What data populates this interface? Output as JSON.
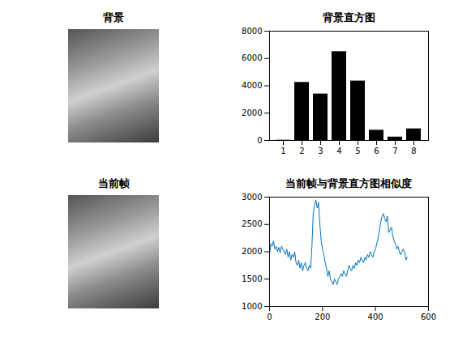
{
  "chart_data": [
    {
      "type": "image",
      "title": "背景"
    },
    {
      "type": "bar",
      "title": "背景直方图",
      "categories": [
        1,
        2,
        3,
        4,
        5,
        6,
        7,
        8
      ],
      "values": [
        20,
        4250,
        3400,
        6500,
        4350,
        750,
        250,
        850
      ],
      "color": "#000000",
      "ylim": [
        0,
        8000
      ],
      "yticks": [
        0,
        2000,
        4000,
        6000,
        8000
      ]
    },
    {
      "type": "image",
      "title": "当前帧"
    },
    {
      "type": "line",
      "title": "当前帧与背景直方图相似度",
      "x": [
        0,
        5,
        10,
        15,
        20,
        25,
        30,
        35,
        40,
        45,
        50,
        55,
        60,
        65,
        70,
        75,
        80,
        85,
        90,
        95,
        100,
        105,
        110,
        115,
        120,
        125,
        130,
        135,
        140,
        145,
        150,
        155,
        160,
        165,
        170,
        175,
        180,
        185,
        190,
        195,
        200,
        205,
        210,
        215,
        220,
        225,
        230,
        235,
        240,
        245,
        250,
        255,
        260,
        265,
        270,
        275,
        280,
        285,
        290,
        295,
        300,
        305,
        310,
        315,
        320,
        325,
        330,
        335,
        340,
        345,
        350,
        355,
        360,
        365,
        370,
        375,
        380,
        385,
        390,
        395,
        400,
        405,
        410,
        415,
        420,
        425,
        430,
        435,
        440,
        445,
        450,
        455,
        460,
        465,
        470,
        475,
        480,
        485,
        490,
        495,
        500,
        505,
        510,
        515,
        520
      ],
      "values": [
        1950,
        2150,
        2100,
        2200,
        2050,
        2100,
        2000,
        2080,
        1980,
        2100,
        2050,
        2000,
        1950,
        2050,
        1900,
        2000,
        1850,
        1950,
        1900,
        2000,
        1800,
        1750,
        1850,
        1700,
        1800,
        1650,
        1750,
        1800,
        1700,
        1650,
        1750,
        1700,
        2100,
        2700,
        2850,
        2950,
        2800,
        2900,
        2500,
        2200,
        2050,
        1950,
        1800,
        1700,
        1550,
        1650,
        1500,
        1450,
        1400,
        1500,
        1450,
        1400,
        1500,
        1550,
        1600,
        1550,
        1650,
        1600,
        1550,
        1650,
        1750,
        1700,
        1650,
        1750,
        1700,
        1800,
        1750,
        1850,
        1800,
        1900,
        1850,
        1800,
        1900,
        1850,
        1950,
        1900,
        2000,
        1950,
        1900,
        2000,
        2050,
        2150,
        2250,
        2400,
        2550,
        2650,
        2700,
        2600,
        2550,
        2650,
        2350,
        2400,
        2450,
        2300,
        2200,
        2150,
        2050,
        2100,
        2000,
        1950,
        2000,
        2050,
        2000,
        1850,
        1900
      ],
      "color": "#0072bd",
      "xlim": [
        0,
        600
      ],
      "xticks": [
        0,
        200,
        400,
        600
      ],
      "ylim": [
        1000,
        3000
      ],
      "yticks": [
        1000,
        1500,
        2000,
        2500,
        3000
      ]
    }
  ]
}
